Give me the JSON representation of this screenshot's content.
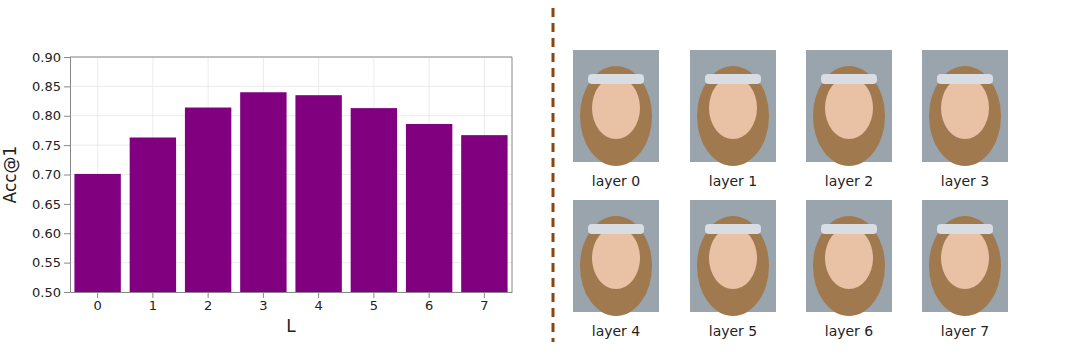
{
  "chart_data": {
    "type": "bar",
    "x_label": "L",
    "y_label": "Acc@1",
    "categories": [
      "0",
      "1",
      "2",
      "3",
      "4",
      "5",
      "6",
      "7"
    ],
    "values": [
      0.701,
      0.763,
      0.814,
      0.84,
      0.835,
      0.813,
      0.786,
      0.767
    ],
    "color": "#800080",
    "ylim": [
      0.5,
      0.9
    ],
    "yticks": [
      {
        "value": 0.5,
        "label": "0.50"
      },
      {
        "value": 0.55,
        "label": "0.55"
      },
      {
        "value": 0.6,
        "label": "0.60"
      },
      {
        "value": 0.65,
        "label": "0.65"
      },
      {
        "value": 0.7,
        "label": "0.70"
      },
      {
        "value": 0.75,
        "label": "0.75"
      },
      {
        "value": 0.8,
        "label": "0.80"
      },
      {
        "value": 0.85,
        "label": "0.85"
      },
      {
        "value": 0.9,
        "label": "0.90"
      }
    ],
    "grid": true
  },
  "image_grid": {
    "captions": [
      "layer 0",
      "layer 1",
      "layer 2",
      "layer 3",
      "layer 4",
      "layer 5",
      "layer 6",
      "layer 7"
    ]
  }
}
